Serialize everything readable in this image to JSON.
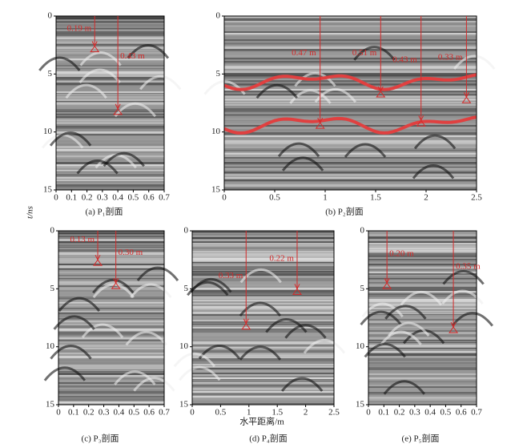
{
  "y_label": "t/ns",
  "x_label": "水平距离/m",
  "panels": [
    {
      "caption": "(a) P₁剖面",
      "xticks": [
        0,
        0.1,
        0.2,
        0.3,
        0.4,
        0.5,
        0.6,
        0.7
      ],
      "yticks": [
        0,
        5,
        10,
        15
      ],
      "annotations": [
        "0.19 m",
        "0.43 m"
      ]
    },
    {
      "caption": "(b) P₂剖面",
      "xticks": [
        0,
        0.5,
        1.0,
        1.5,
        2.0,
        2.5
      ],
      "yticks": [
        0,
        5,
        10,
        15
      ],
      "annotations": [
        "0.47 m",
        "0.51 m",
        "0.43 m",
        "0.33 m"
      ]
    },
    {
      "caption": "(c) P₃剖面",
      "xticks": [
        0,
        0.1,
        0.2,
        0.3,
        0.4,
        0.5,
        0.6,
        0.7
      ],
      "yticks": [
        0,
        5,
        10,
        15
      ],
      "annotations": [
        "0.13 m",
        "0.30 m"
      ]
    },
    {
      "caption": "(d) P₄剖面",
      "xticks": [
        0,
        0.5,
        1.0,
        1.5,
        2.0,
        2.5
      ],
      "yticks": [
        0,
        5,
        10,
        15
      ],
      "annotations": [
        "0.33 m",
        "0.22 m"
      ]
    },
    {
      "caption": "(e) P₅剖面",
      "xticks": [
        0,
        0.1,
        0.2,
        0.3,
        0.4,
        0.5,
        0.6,
        0.7
      ],
      "yticks": [
        0,
        5,
        10,
        15
      ],
      "annotations": [
        "0.20 m",
        "0.35 m"
      ]
    }
  ]
}
